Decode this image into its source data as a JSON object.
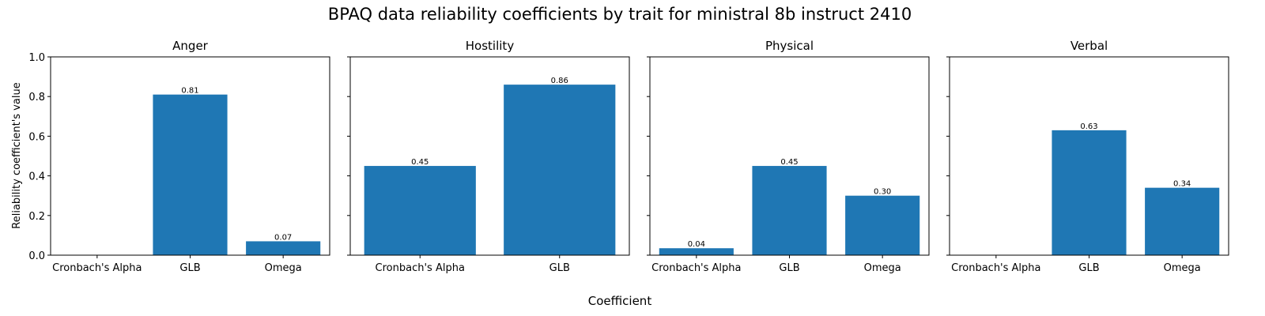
{
  "chart_data": {
    "type": "bar",
    "title": "BPAQ data reliability coefficients by trait for ministral 8b instruct 2410",
    "xlabel": "Coefficient",
    "ylabel": "Reliability coefficient's value",
    "ylim": [
      0,
      1.0
    ],
    "yticks": [
      "0.0",
      "0.2",
      "0.4",
      "0.6",
      "0.8",
      "1.0"
    ],
    "bar_color": "#1f77b4",
    "grid": false,
    "subplots": [
      {
        "title": "Anger",
        "categories": [
          "Cronbach's Alpha",
          "GLB",
          "Omega"
        ],
        "values": [
          null,
          0.81,
          0.07
        ],
        "labels": [
          "",
          "0.81",
          "0.07"
        ]
      },
      {
        "title": "Hostility",
        "categories": [
          "Cronbach's Alpha",
          "GLB"
        ],
        "values": [
          0.45,
          0.86
        ],
        "labels": [
          "0.45",
          "0.86"
        ]
      },
      {
        "title": "Physical",
        "categories": [
          "Cronbach's Alpha",
          "GLB",
          "Omega"
        ],
        "values": [
          0.035,
          0.45,
          0.3
        ],
        "labels": [
          "0.04",
          "0.45",
          "0.30"
        ]
      },
      {
        "title": "Verbal",
        "categories": [
          "Cronbach's Alpha",
          "GLB",
          "Omega"
        ],
        "values": [
          null,
          0.63,
          0.34
        ],
        "labels": [
          "",
          "0.63",
          "0.34"
        ]
      }
    ]
  }
}
